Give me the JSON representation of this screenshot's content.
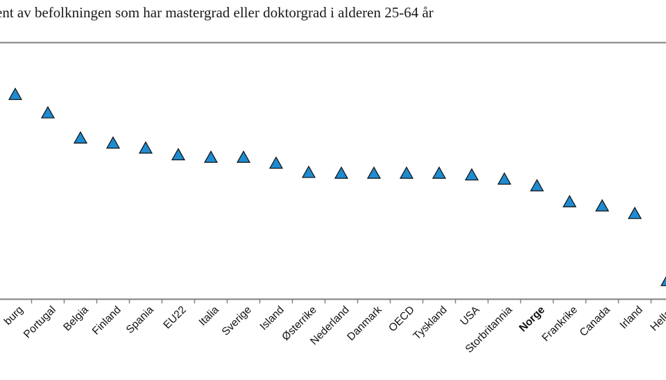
{
  "chart_data": {
    "type": "scatter",
    "title": "ent av befolkningen som har mastergrad eller doktorgrad i alderen 25-64 år",
    "xlabel": "",
    "ylabel": "",
    "marker": "triangle",
    "colors": {
      "marker_fill": "#1f8bd0",
      "marker_stroke": "#0d0d0d",
      "frame": "#7f7f7f"
    },
    "grid": false,
    "highlight_category": "Norge",
    "categories": [
      "burg",
      "Portugal",
      "Belgia",
      "Finland",
      "Spania",
      "EU22",
      "Italia",
      "Sverige",
      "Island",
      "Østerrike",
      "Nederland",
      "Danmark",
      "OECD",
      "Tyskland",
      "USA",
      "Storbritannia",
      "Norge",
      "Frankrike",
      "Canada",
      "Irland",
      "Hellas"
    ],
    "values": [
      19.5,
      18.4,
      16.9,
      16.6,
      16.3,
      15.9,
      15.75,
      15.75,
      15.4,
      14.85,
      14.8,
      14.8,
      14.8,
      14.8,
      14.7,
      14.45,
      14.05,
      13.1,
      12.85,
      12.4,
      8.4
    ],
    "ylim": [
      7.3,
      22.6
    ]
  }
}
